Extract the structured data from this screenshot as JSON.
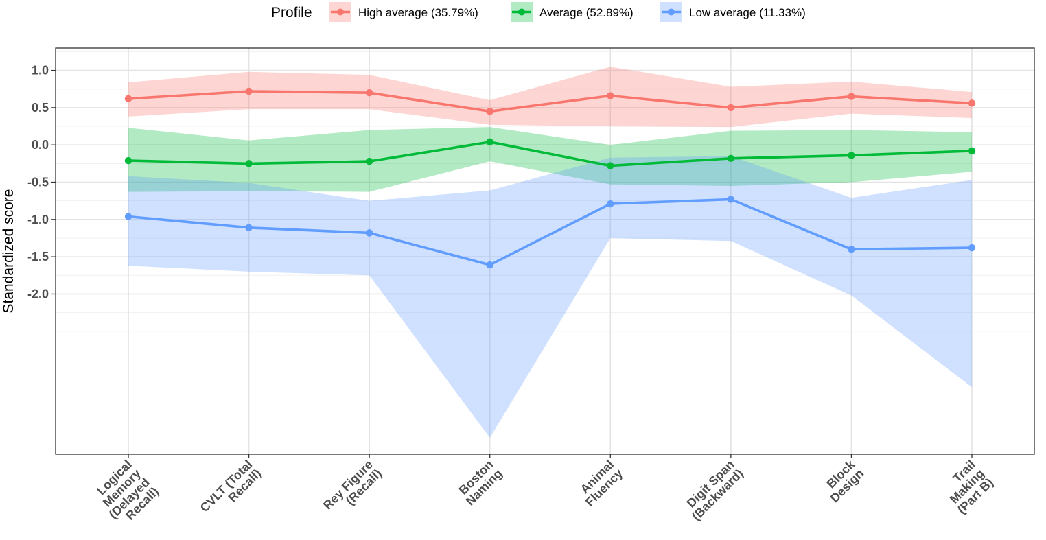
{
  "chart_data": {
    "type": "line",
    "ylabel": "Standardized score",
    "xlabel": "",
    "legend": {
      "title": "Profile",
      "position": "top"
    },
    "categories": [
      [
        "Logical",
        "Memory",
        "(Delayed",
        "Recall)"
      ],
      [
        "CVLT (Total",
        "Recall)"
      ],
      [
        "Rey Figure",
        "(Recall)"
      ],
      [
        "Boston",
        "Naming"
      ],
      [
        "Animal",
        "Fluency"
      ],
      [
        "Digit Span",
        "(Backward)"
      ],
      [
        "Block",
        "Design"
      ],
      [
        "Trail",
        "Making",
        "(Part B)"
      ]
    ],
    "ylim": [
      -4.15,
      1.3
    ],
    "yticks": [
      1.0,
      0.5,
      0.0,
      -0.5,
      -1.0,
      -1.5,
      -2.0
    ],
    "ytick_labels": [
      "1.0",
      "0.5",
      "0.0",
      "-0.5",
      "-1.0",
      "-1.5",
      "-2.0"
    ],
    "grid": true,
    "series": [
      {
        "name": "High average (35.79%)",
        "color": "#F8766D",
        "fill": "#F8766D",
        "values": [
          0.62,
          0.72,
          0.7,
          0.45,
          0.66,
          0.5,
          0.65,
          0.56
        ],
        "lower": [
          0.38,
          0.48,
          0.48,
          0.27,
          0.25,
          0.24,
          0.42,
          0.36
        ],
        "upper": [
          0.84,
          0.98,
          0.94,
          0.6,
          1.05,
          0.78,
          0.85,
          0.71
        ]
      },
      {
        "name": "Average (52.89%)",
        "color": "#00BA38",
        "fill": "#00BA38",
        "values": [
          -0.21,
          -0.25,
          -0.22,
          0.04,
          -0.28,
          -0.18,
          -0.14,
          -0.08
        ],
        "lower": [
          -0.63,
          -0.62,
          -0.63,
          -0.22,
          -0.53,
          -0.55,
          -0.5,
          -0.36
        ],
        "upper": [
          0.23,
          0.06,
          0.2,
          0.24,
          0.0,
          0.19,
          0.2,
          0.17
        ]
      },
      {
        "name": "Low average (11.33%)",
        "color": "#619CFF",
        "fill": "#619CFF",
        "values": [
          -0.96,
          -1.11,
          -1.18,
          -1.61,
          -0.79,
          -0.73,
          -1.4,
          -1.38
        ],
        "lower": [
          -1.62,
          -1.7,
          -1.75,
          -3.93,
          -1.25,
          -1.29,
          -2.02,
          -3.25
        ],
        "upper": [
          -0.42,
          -0.51,
          -0.75,
          -0.61,
          -0.17,
          -0.15,
          -0.71,
          -0.47
        ]
      }
    ]
  }
}
